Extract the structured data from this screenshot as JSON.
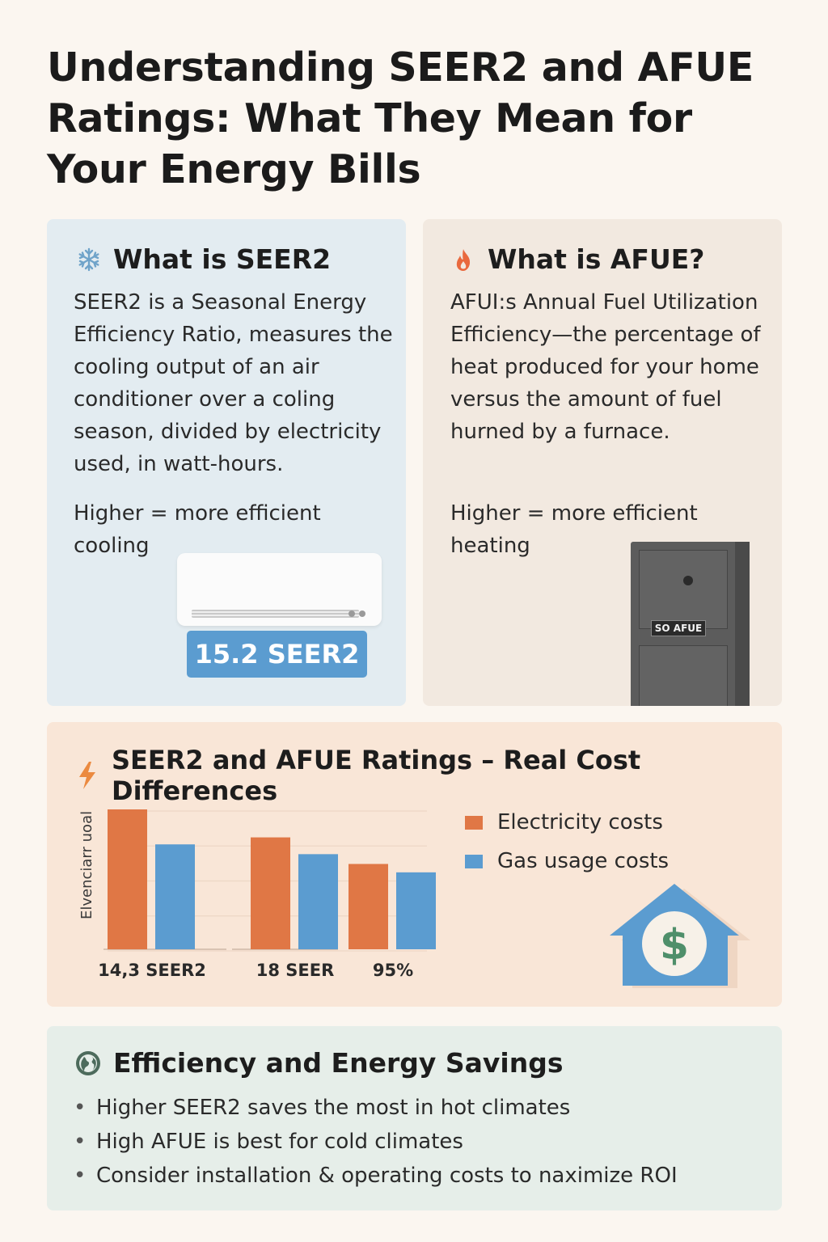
{
  "title": "Understanding SEER2 and AFUE Ratings: What They Mean for Your Energy Bills",
  "seer_card": {
    "icon": "snowflake-icon",
    "heading": "What is SEER2",
    "description": "SEER2 is a Seasonal Energy Efficiency Ratio, measures the cooling output of an air conditioner over a coling season, divided by electricity used, in watt-hours.",
    "note": "Higher = more efficient cooling",
    "badge": "15.2 SEER2"
  },
  "afue_card": {
    "icon": "flame-icon",
    "heading": "What is AFUE?",
    "description": "AFUI:s Annual Fuel Utilization Efficiency—the percentage of heat produced for your home versus the amount of fuel hurned by a furnace.",
    "note": "Higher = more efficient heating",
    "furnace_label": "SO AFUE"
  },
  "cost_card": {
    "icon": "lightning-icon",
    "heading": "SEER2 and AFUE Ratings – Real Cost Differences"
  },
  "chart_data": {
    "type": "bar",
    "title": "",
    "ylabel": "Elvenciarr uoal",
    "xlabel": "",
    "groups": [
      {
        "label": "14,3 SEER2",
        "values": [
          100,
          75
        ]
      },
      {
        "label": "18 SEER",
        "values": [
          80,
          68
        ]
      },
      {
        "label": "95%",
        "values": [
          61,
          55
        ]
      }
    ],
    "series": [
      {
        "name": "Electricity costs",
        "color": "#e07745"
      },
      {
        "name": "Gas usage costs",
        "color": "#5b9cd0"
      }
    ],
    "ylim": [
      0,
      100
    ],
    "grid": true,
    "legend": "top-right"
  },
  "savings_card": {
    "icon": "globe-icon",
    "heading": "Efficiency and Energy Savings",
    "items": [
      "Higher SEER2 saves the most in hot climates",
      "High AFUE is best for cold climates",
      "Consider installation & operating costs to naximize ROI"
    ]
  },
  "colors": {
    "background": "#fbf6f0",
    "seer_card": "#e3ecf1",
    "afue_card": "#f2e9e0",
    "cost_card": "#f9e6d7",
    "savings_card": "#e6eee9",
    "accent_blue": "#5b9cd0",
    "accent_orange": "#e07745",
    "money_green": "#4f8f6a"
  }
}
